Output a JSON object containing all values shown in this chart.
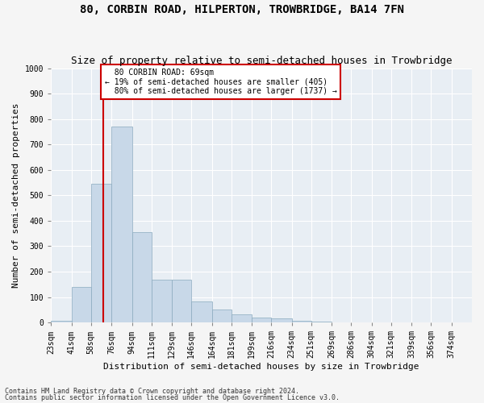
{
  "title1": "80, CORBIN ROAD, HILPERTON, TROWBRIDGE, BA14 7FN",
  "title2": "Size of property relative to semi-detached houses in Trowbridge",
  "xlabel": "Distribution of semi-detached houses by size in Trowbridge",
  "ylabel": "Number of semi-detached properties",
  "property_label": "80 CORBIN ROAD: 69sqm",
  "pct_smaller": 19,
  "count_smaller": 405,
  "pct_larger": 80,
  "count_larger": 1737,
  "bin_labels": [
    "23sqm",
    "41sqm",
    "58sqm",
    "76sqm",
    "94sqm",
    "111sqm",
    "129sqm",
    "146sqm",
    "164sqm",
    "181sqm",
    "199sqm",
    "216sqm",
    "234sqm",
    "251sqm",
    "269sqm",
    "286sqm",
    "304sqm",
    "321sqm",
    "339sqm",
    "356sqm",
    "374sqm"
  ],
  "bin_edges": [
    23,
    41,
    58,
    76,
    94,
    111,
    129,
    146,
    164,
    181,
    199,
    216,
    234,
    251,
    269,
    286,
    304,
    321,
    339,
    356,
    374,
    392
  ],
  "bar_values": [
    8,
    140,
    545,
    770,
    355,
    170,
    170,
    82,
    50,
    33,
    18,
    15,
    8,
    3,
    0,
    0,
    0,
    0,
    0,
    0,
    0
  ],
  "bar_color": "#c8d8e8",
  "bar_edge_color": "#8aaabe",
  "vline_x": 69,
  "vline_color": "#cc0000",
  "annotation_box_color": "#cc0000",
  "footer1": "Contains HM Land Registry data © Crown copyright and database right 2024.",
  "footer2": "Contains public sector information licensed under the Open Government Licence v3.0.",
  "ylim": [
    0,
    1000
  ],
  "yticks": [
    0,
    100,
    200,
    300,
    400,
    500,
    600,
    700,
    800,
    900,
    1000
  ],
  "plot_bg_color": "#e8eef4",
  "fig_bg_color": "#f5f5f5",
  "grid_color": "#ffffff",
  "title_fontsize": 10,
  "subtitle_fontsize": 9,
  "axis_label_fontsize": 8,
  "tick_fontsize": 7,
  "annotation_fontsize": 7
}
